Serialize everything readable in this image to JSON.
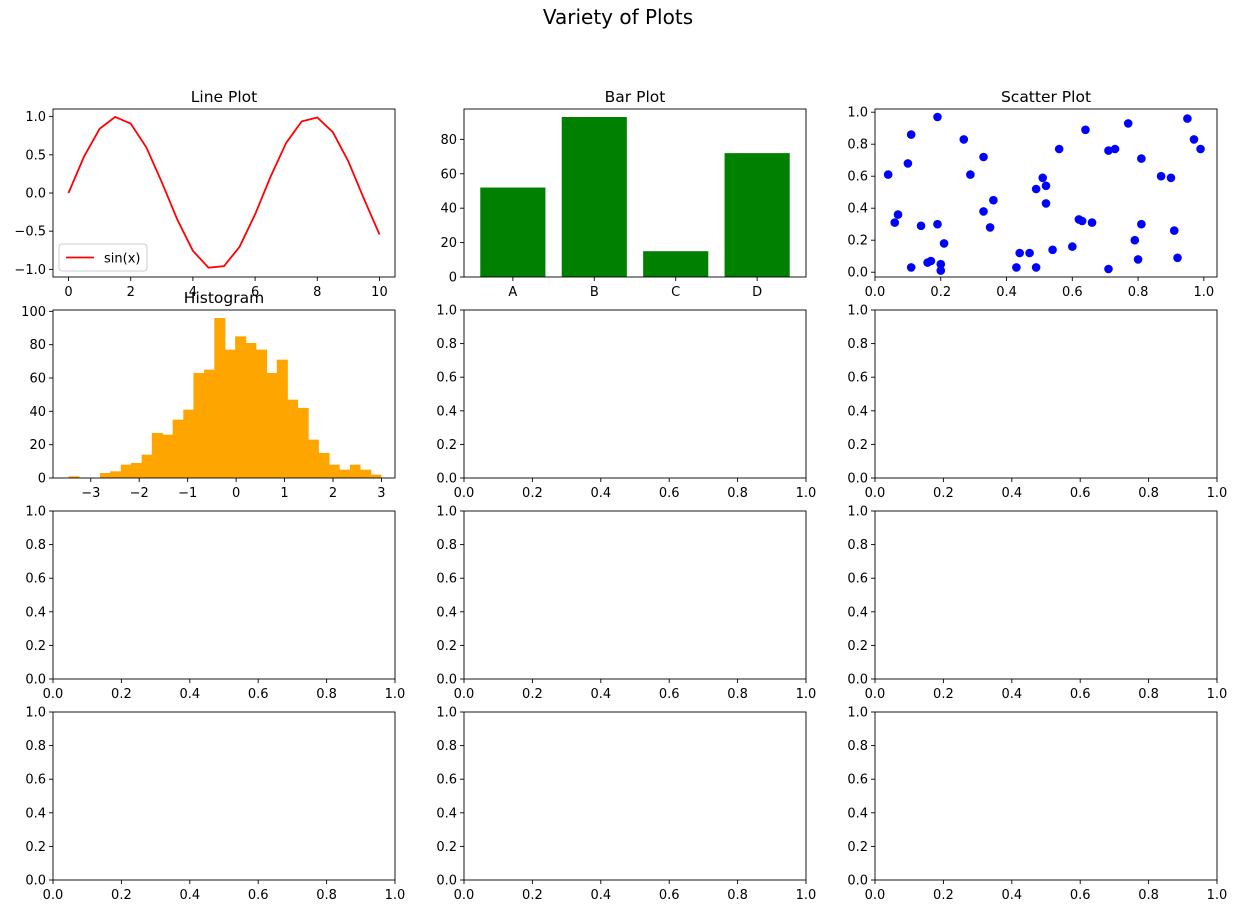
{
  "figure": {
    "title": "Variety of Plots"
  },
  "chart_data": [
    {
      "id": "line",
      "type": "line",
      "title": "Line Plot",
      "xlim": [
        -0.5,
        10.5
      ],
      "ylim": [
        -1.1,
        1.1
      ],
      "xticks": [
        0,
        2,
        4,
        6,
        8,
        10
      ],
      "yticks": [
        -1.0,
        -0.5,
        0.0,
        0.5,
        1.0
      ],
      "xtick_labels": [
        "0",
        "2",
        "4",
        "6",
        "8",
        "10"
      ],
      "ytick_labels": [
        "−1.0",
        "−0.5",
        "0.0",
        "0.5",
        "1.0"
      ],
      "series": [
        {
          "name": "sin(x)",
          "color": "#ff0000",
          "x": [
            0,
            0.5,
            1,
            1.5,
            2,
            2.5,
            3,
            3.5,
            4,
            4.5,
            5,
            5.5,
            6,
            6.5,
            7,
            7.5,
            8,
            8.5,
            9,
            9.5,
            10
          ],
          "y": [
            0,
            0.479,
            0.841,
            0.997,
            0.909,
            0.598,
            0.141,
            -0.351,
            -0.757,
            -0.978,
            -0.959,
            -0.706,
            -0.279,
            0.215,
            0.657,
            0.938,
            0.989,
            0.798,
            0.412,
            -0.075,
            -0.544
          ]
        }
      ],
      "legend": {
        "position": "lower-left"
      }
    },
    {
      "id": "bar",
      "type": "bar",
      "title": "Bar Plot",
      "categories": [
        "A",
        "B",
        "C",
        "D"
      ],
      "values": [
        52,
        93,
        15,
        72
      ],
      "color": "#008000",
      "ylim": [
        0,
        97.65
      ],
      "yticks": [
        0,
        20,
        40,
        60,
        80
      ],
      "ytick_labels": [
        "0",
        "20",
        "40",
        "60",
        "80"
      ]
    },
    {
      "id": "scatter",
      "type": "scatter",
      "title": "Scatter Plot",
      "color": "#0000ff",
      "xlim": [
        0,
        1.04
      ],
      "ylim": [
        -0.03,
        1.02
      ],
      "xticks": [
        0,
        0.2,
        0.4,
        0.6,
        0.8,
        1.0
      ],
      "yticks": [
        0,
        0.2,
        0.4,
        0.6,
        0.8,
        1.0
      ],
      "xtick_labels": [
        "0.0",
        "0.2",
        "0.4",
        "0.6",
        "0.8",
        "1.0"
      ],
      "ytick_labels": [
        "0.0",
        "0.2",
        "0.4",
        "0.6",
        "0.8",
        "1.0"
      ],
      "points": [
        [
          0.04,
          0.61
        ],
        [
          0.06,
          0.31
        ],
        [
          0.07,
          0.36
        ],
        [
          0.1,
          0.68
        ],
        [
          0.11,
          0.03
        ],
        [
          0.11,
          0.86
        ],
        [
          0.14,
          0.29
        ],
        [
          0.16,
          0.06
        ],
        [
          0.17,
          0.07
        ],
        [
          0.19,
          0.3
        ],
        [
          0.19,
          0.97
        ],
        [
          0.2,
          0.05
        ],
        [
          0.2,
          0.01
        ],
        [
          0.21,
          0.18
        ],
        [
          0.27,
          0.83
        ],
        [
          0.29,
          0.61
        ],
        [
          0.33,
          0.72
        ],
        [
          0.33,
          0.38
        ],
        [
          0.35,
          0.28
        ],
        [
          0.36,
          0.45
        ],
        [
          0.43,
          0.03
        ],
        [
          0.44,
          0.12
        ],
        [
          0.47,
          0.12
        ],
        [
          0.49,
          0.52
        ],
        [
          0.49,
          0.03
        ],
        [
          0.51,
          0.59
        ],
        [
          0.52,
          0.54
        ],
        [
          0.52,
          0.43
        ],
        [
          0.54,
          0.14
        ],
        [
          0.56,
          0.77
        ],
        [
          0.6,
          0.16
        ],
        [
          0.62,
          0.33
        ],
        [
          0.63,
          0.32
        ],
        [
          0.64,
          0.89
        ],
        [
          0.66,
          0.31
        ],
        [
          0.71,
          0.02
        ],
        [
          0.71,
          0.76
        ],
        [
          0.73,
          0.77
        ],
        [
          0.77,
          0.93
        ],
        [
          0.79,
          0.2
        ],
        [
          0.8,
          0.08
        ],
        [
          0.81,
          0.3
        ],
        [
          0.81,
          0.71
        ],
        [
          0.87,
          0.6
        ],
        [
          0.9,
          0.59
        ],
        [
          0.91,
          0.26
        ],
        [
          0.92,
          0.09
        ],
        [
          0.95,
          0.96
        ],
        [
          0.97,
          0.83
        ],
        [
          0.99,
          0.77
        ]
      ]
    },
    {
      "id": "hist",
      "type": "bar",
      "title": "Histogram",
      "color": "#ffa500",
      "xlim": [
        -3.78,
        3.28
      ],
      "ylim": [
        0,
        100.8
      ],
      "xticks": [
        -3,
        -2,
        -1,
        0,
        1,
        2,
        3
      ],
      "yticks": [
        0,
        20,
        40,
        60,
        80,
        100
      ],
      "xtick_labels": [
        "−3",
        "−2",
        "−1",
        "0",
        "1",
        "2",
        "3"
      ],
      "ytick_labels": [
        "0",
        "20",
        "40",
        "60",
        "80",
        "100"
      ],
      "bin_edges": [
        -3.46,
        -3.24,
        -3.03,
        -2.81,
        -2.6,
        -2.38,
        -2.17,
        -1.95,
        -1.74,
        -1.52,
        -1.31,
        -1.09,
        -0.88,
        -0.66,
        -0.45,
        -0.23,
        -0.02,
        0.2,
        0.41,
        0.63,
        0.84,
        1.06,
        1.27,
        1.49,
        1.7,
        1.92,
        2.13,
        2.35,
        2.56,
        2.78,
        2.99
      ],
      "counts": [
        1,
        0,
        0,
        3,
        4,
        8,
        9,
        14,
        27,
        26,
        35,
        41,
        63,
        65,
        96,
        77,
        85,
        81,
        77,
        63,
        71,
        47,
        42,
        23,
        15,
        8,
        5,
        8,
        5,
        2
      ]
    },
    {
      "id": "empty-r2c2",
      "type": "line",
      "title": "",
      "xlim": [
        0,
        1
      ],
      "ylim": [
        0,
        1
      ],
      "xticks": [
        0,
        0.2,
        0.4,
        0.6,
        0.8,
        1.0
      ],
      "yticks": [
        0,
        0.2,
        0.4,
        0.6,
        0.8,
        1.0
      ],
      "xtick_labels": [
        "0.0",
        "0.2",
        "0.4",
        "0.6",
        "0.8",
        "1.0"
      ],
      "ytick_labels": [
        "0.0",
        "0.2",
        "0.4",
        "0.6",
        "0.8",
        "1.0"
      ]
    },
    {
      "id": "empty-r2c3",
      "type": "line",
      "title": "",
      "xlim": [
        0,
        1
      ],
      "ylim": [
        0,
        1
      ],
      "xticks": [
        0,
        0.2,
        0.4,
        0.6,
        0.8,
        1.0
      ],
      "yticks": [
        0,
        0.2,
        0.4,
        0.6,
        0.8,
        1.0
      ],
      "xtick_labels": [
        "0.0",
        "0.2",
        "0.4",
        "0.6",
        "0.8",
        "1.0"
      ],
      "ytick_labels": [
        "0.0",
        "0.2",
        "0.4",
        "0.6",
        "0.8",
        "1.0"
      ]
    },
    {
      "id": "empty-r3c1",
      "type": "line",
      "title": "",
      "xlim": [
        0,
        1
      ],
      "ylim": [
        0,
        1
      ],
      "xticks": [
        0,
        0.2,
        0.4,
        0.6,
        0.8,
        1.0
      ],
      "yticks": [
        0,
        0.2,
        0.4,
        0.6,
        0.8,
        1.0
      ],
      "xtick_labels": [
        "0.0",
        "0.2",
        "0.4",
        "0.6",
        "0.8",
        "1.0"
      ],
      "ytick_labels": [
        "0.0",
        "0.2",
        "0.4",
        "0.6",
        "0.8",
        "1.0"
      ]
    },
    {
      "id": "empty-r3c2",
      "type": "line",
      "title": "",
      "xlim": [
        0,
        1
      ],
      "ylim": [
        0,
        1
      ],
      "xticks": [
        0,
        0.2,
        0.4,
        0.6,
        0.8,
        1.0
      ],
      "yticks": [
        0,
        0.2,
        0.4,
        0.6,
        0.8,
        1.0
      ],
      "xtick_labels": [
        "0.0",
        "0.2",
        "0.4",
        "0.6",
        "0.8",
        "1.0"
      ],
      "ytick_labels": [
        "0.0",
        "0.2",
        "0.4",
        "0.6",
        "0.8",
        "1.0"
      ]
    },
    {
      "id": "empty-r3c3",
      "type": "line",
      "title": "",
      "xlim": [
        0,
        1
      ],
      "ylim": [
        0,
        1
      ],
      "xticks": [
        0,
        0.2,
        0.4,
        0.6,
        0.8,
        1.0
      ],
      "yticks": [
        0,
        0.2,
        0.4,
        0.6,
        0.8,
        1.0
      ],
      "xtick_labels": [
        "0.0",
        "0.2",
        "0.4",
        "0.6",
        "0.8",
        "1.0"
      ],
      "ytick_labels": [
        "0.0",
        "0.2",
        "0.4",
        "0.6",
        "0.8",
        "1.0"
      ]
    },
    {
      "id": "empty-r4c1",
      "type": "line",
      "title": "",
      "xlim": [
        0,
        1
      ],
      "ylim": [
        0,
        1
      ],
      "xticks": [
        0,
        0.2,
        0.4,
        0.6,
        0.8,
        1.0
      ],
      "yticks": [
        0,
        0.2,
        0.4,
        0.6,
        0.8,
        1.0
      ],
      "xtick_labels": [
        "0.0",
        "0.2",
        "0.4",
        "0.6",
        "0.8",
        "1.0"
      ],
      "ytick_labels": [
        "0.0",
        "0.2",
        "0.4",
        "0.6",
        "0.8",
        "1.0"
      ]
    },
    {
      "id": "empty-r4c2",
      "type": "line",
      "title": "",
      "xlim": [
        0,
        1
      ],
      "ylim": [
        0,
        1
      ],
      "xticks": [
        0,
        0.2,
        0.4,
        0.6,
        0.8,
        1.0
      ],
      "yticks": [
        0,
        0.2,
        0.4,
        0.6,
        0.8,
        1.0
      ],
      "xtick_labels": [
        "0.0",
        "0.2",
        "0.4",
        "0.6",
        "0.8",
        "1.0"
      ],
      "ytick_labels": [
        "0.0",
        "0.2",
        "0.4",
        "0.6",
        "0.8",
        "1.0"
      ]
    },
    {
      "id": "empty-r4c3",
      "type": "line",
      "title": "",
      "xlim": [
        0,
        1
      ],
      "ylim": [
        0,
        1
      ],
      "xticks": [
        0,
        0.2,
        0.4,
        0.6,
        0.8,
        1.0
      ],
      "yticks": [
        0,
        0.2,
        0.4,
        0.6,
        0.8,
        1.0
      ],
      "xtick_labels": [
        "0.0",
        "0.2",
        "0.4",
        "0.6",
        "0.8",
        "1.0"
      ],
      "ytick_labels": [
        "0.0",
        "0.2",
        "0.4",
        "0.6",
        "0.8",
        "1.0"
      ]
    }
  ]
}
